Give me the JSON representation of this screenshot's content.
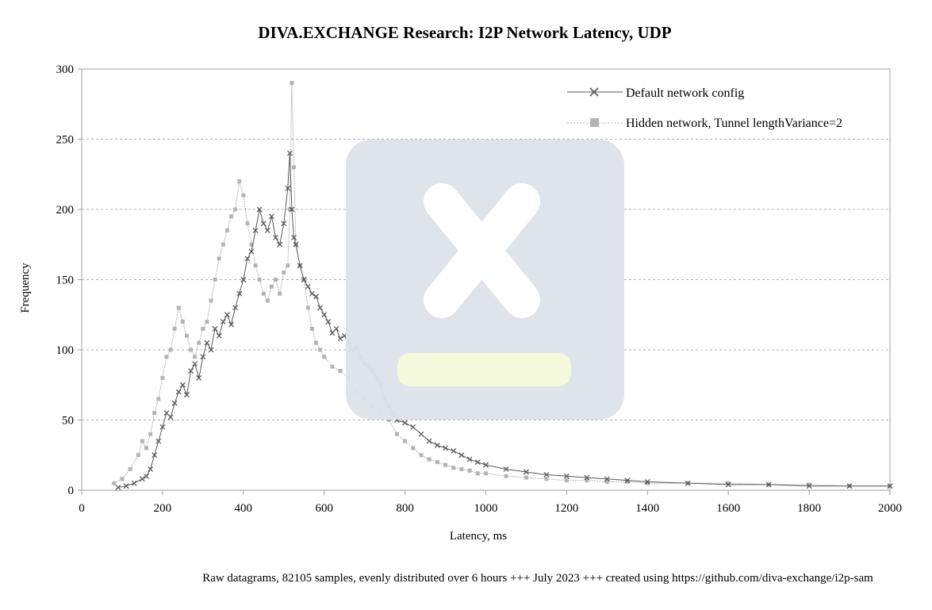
{
  "chart_data": {
    "type": "line",
    "title": "DIVA.EXCHANGE Research: I2P Network Latency, UDP",
    "xlabel": "Latency, ms",
    "ylabel": "Frequency",
    "footer": "Raw datagrams, 82105 samples, evenly distributed over 6 hours +++ July 2023 +++ created using https://github.com/diva-exchange/i2p-sam",
    "xlim": [
      0,
      2000
    ],
    "ylim": [
      0,
      300
    ],
    "x_ticks": [
      "0",
      "200",
      "400",
      "600",
      "800",
      "1000",
      "1200",
      "1400",
      "1600",
      "1800",
      "2000"
    ],
    "y_ticks": [
      "0",
      "50",
      "100",
      "150",
      "200",
      "250",
      "300"
    ],
    "grid": "horizontal dashed",
    "legend_position": "top-right",
    "series": [
      {
        "name": "Default network config",
        "marker": "x",
        "color": "#5a5a5a",
        "x": [
          90,
          110,
          130,
          150,
          160,
          170,
          180,
          190,
          200,
          210,
          220,
          230,
          240,
          250,
          260,
          270,
          280,
          290,
          300,
          310,
          320,
          330,
          340,
          350,
          360,
          370,
          380,
          390,
          400,
          410,
          420,
          430,
          440,
          450,
          460,
          470,
          480,
          490,
          500,
          510,
          515,
          520,
          525,
          530,
          540,
          550,
          560,
          570,
          580,
          590,
          600,
          610,
          620,
          630,
          640,
          650,
          660,
          670,
          680,
          690,
          700,
          710,
          720,
          730,
          740,
          750,
          760,
          770,
          780,
          800,
          820,
          840,
          860,
          880,
          900,
          920,
          940,
          960,
          980,
          1000,
          1050,
          1100,
          1150,
          1200,
          1250,
          1300,
          1350,
          1400,
          1500,
          1600,
          1700,
          1800,
          1900,
          2000
        ],
        "y": [
          2,
          3,
          5,
          8,
          10,
          15,
          25,
          35,
          45,
          55,
          52,
          62,
          70,
          75,
          68,
          85,
          90,
          80,
          95,
          105,
          100,
          115,
          110,
          120,
          125,
          118,
          130,
          140,
          150,
          165,
          170,
          185,
          200,
          190,
          185,
          195,
          180,
          175,
          190,
          215,
          240,
          200,
          180,
          175,
          160,
          150,
          145,
          140,
          138,
          130,
          125,
          120,
          112,
          115,
          108,
          110,
          105,
          100,
          102,
          95,
          90,
          88,
          85,
          80,
          75,
          65,
          60,
          55,
          50,
          48,
          45,
          40,
          35,
          32,
          30,
          28,
          25,
          22,
          20,
          18,
          15,
          13,
          11,
          10,
          9,
          8,
          7,
          6,
          5,
          4,
          4,
          3,
          3,
          3
        ]
      },
      {
        "name": "Hidden network, Tunnel lengthVariance=2",
        "marker": "square",
        "color": "#b4b4b4",
        "x": [
          80,
          100,
          120,
          140,
          150,
          160,
          170,
          180,
          190,
          200,
          210,
          220,
          230,
          240,
          250,
          260,
          270,
          280,
          290,
          300,
          310,
          320,
          330,
          340,
          350,
          360,
          370,
          380,
          390,
          400,
          410,
          420,
          430,
          440,
          450,
          460,
          470,
          480,
          490,
          500,
          510,
          515,
          520,
          525,
          530,
          540,
          550,
          560,
          570,
          580,
          590,
          600,
          620,
          640,
          660,
          680,
          700,
          720,
          740,
          760,
          780,
          800,
          820,
          840,
          860,
          880,
          900,
          920,
          940,
          960,
          980,
          1000,
          1050,
          1100,
          1150,
          1200,
          1250,
          1300,
          1350,
          1400,
          1500,
          1600,
          1700,
          1800,
          1900,
          2000
        ],
        "y": [
          5,
          8,
          15,
          25,
          35,
          30,
          40,
          55,
          65,
          80,
          95,
          100,
          115,
          130,
          120,
          110,
          100,
          95,
          105,
          115,
          120,
          135,
          150,
          165,
          175,
          185,
          195,
          200,
          220,
          210,
          190,
          175,
          160,
          150,
          140,
          135,
          145,
          150,
          140,
          155,
          160,
          200,
          290,
          230,
          175,
          160,
          150,
          130,
          115,
          105,
          100,
          95,
          88,
          85,
          80,
          70,
          65,
          60,
          55,
          50,
          40,
          35,
          30,
          25,
          22,
          20,
          18,
          16,
          15,
          14,
          12,
          12,
          10,
          9,
          8,
          7,
          7,
          6,
          6,
          5,
          5,
          5,
          4,
          4,
          3,
          3
        ]
      }
    ]
  },
  "watermark": {
    "icon": "broken-image-icon",
    "panel_color": "#dde3e8",
    "cross_color": "#ffffff",
    "bar_color": "#f5f9dc"
  }
}
